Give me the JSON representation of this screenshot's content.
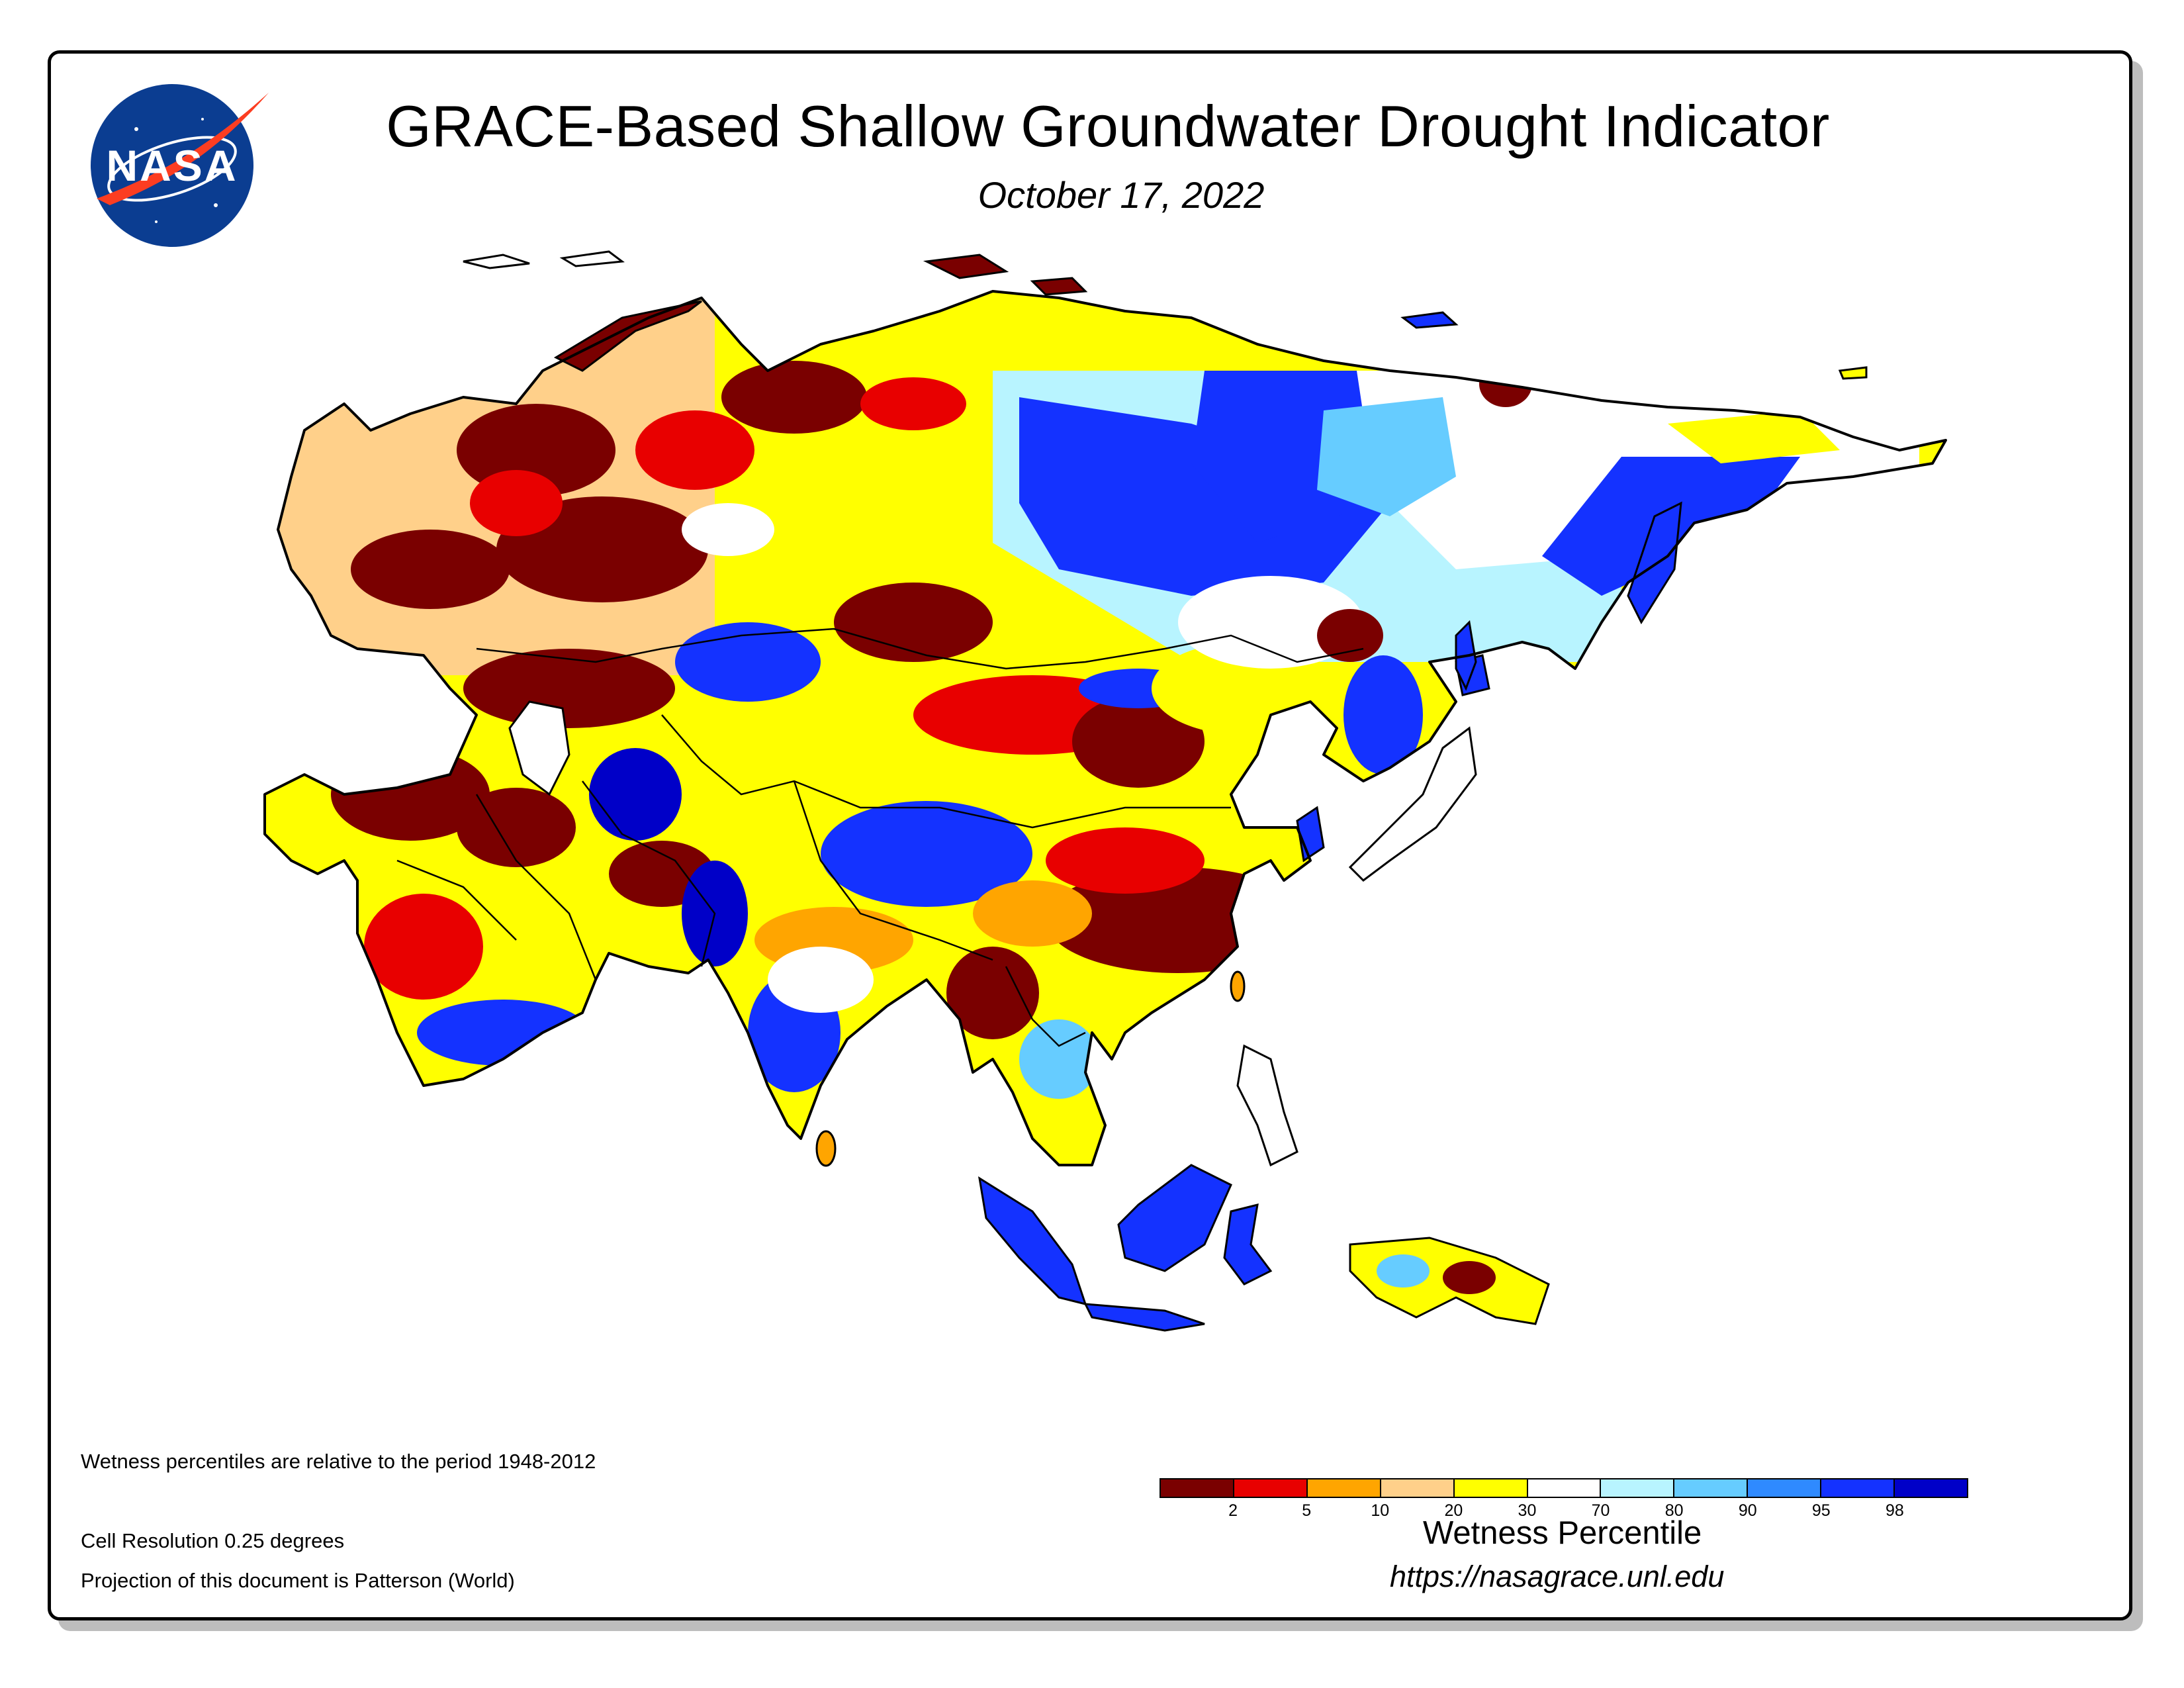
{
  "header": {
    "title": "GRACE-Based Shallow Groundwater Drought Indicator",
    "date": "October 17, 2022",
    "logo_text": "NASA"
  },
  "notes": {
    "period": "Wetness percentiles are relative to the period 1948-2012",
    "resolution": "Cell Resolution 0.25 degrees",
    "projection": "Projection of this document is Patterson (World)"
  },
  "legend": {
    "title": "Wetness Percentile",
    "url": "https://nasagrace.unl.edu",
    "colors": [
      "#7a0000",
      "#e80000",
      "#ffa500",
      "#ffd08a",
      "#ffff00",
      "#ffffff",
      "#b8f4ff",
      "#66ccff",
      "#2f8aff",
      "#1432ff",
      "#0000c8"
    ],
    "ticks": [
      "2",
      "5",
      "10",
      "20",
      "30",
      "70",
      "80",
      "90",
      "95",
      "98"
    ]
  },
  "colors": {
    "dark_red": "#7a0000",
    "red": "#e80000",
    "orange": "#ffa500",
    "tan": "#ffd08a",
    "yellow": "#ffff00",
    "white": "#ffffff",
    "pale_blue": "#b8f4ff",
    "light_blue": "#66ccff",
    "mid_blue": "#2f8aff",
    "blue": "#1432ff",
    "dark_blue": "#0000c8",
    "nasa_blue": "#0b3d91",
    "nasa_red": "#fc3d21"
  }
}
